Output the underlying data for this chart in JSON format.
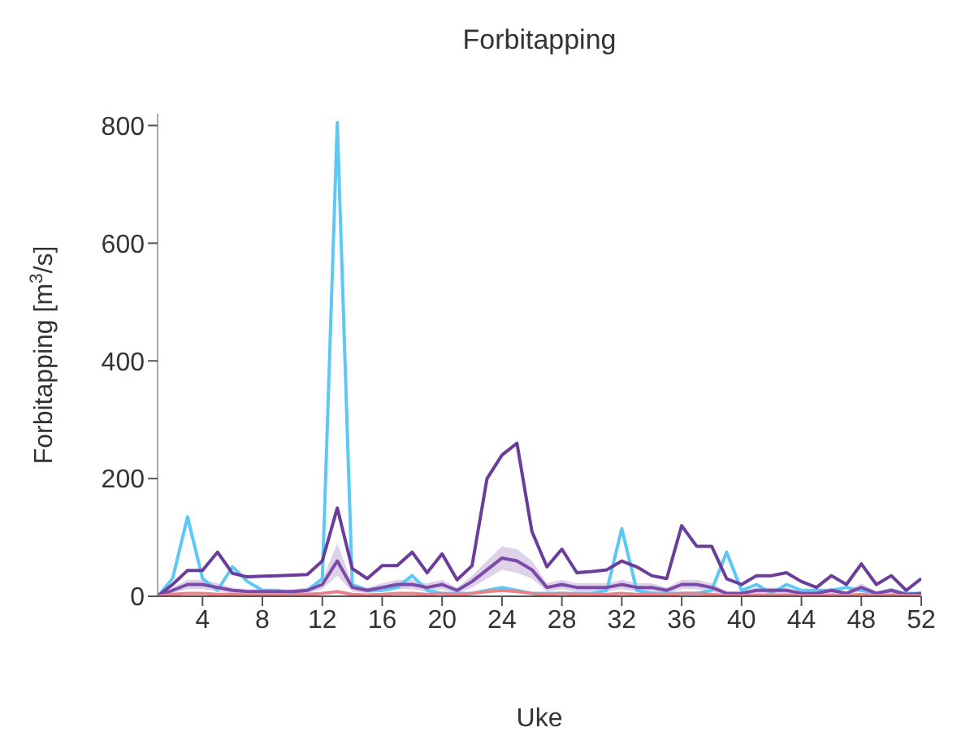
{
  "chart_data": {
    "type": "line",
    "title": "Forbitapping",
    "xlabel": "Uke",
    "ylabel": "Forbitapping [m$^{3}$/s]",
    "x": [
      1,
      2,
      3,
      4,
      5,
      6,
      7,
      8,
      9,
      10,
      11,
      12,
      13,
      14,
      15,
      16,
      17,
      18,
      19,
      20,
      21,
      22,
      23,
      24,
      25,
      26,
      27,
      28,
      29,
      30,
      31,
      32,
      33,
      34,
      35,
      36,
      37,
      38,
      39,
      40,
      41,
      42,
      43,
      44,
      45,
      46,
      47,
      48,
      49,
      50,
      51,
      52
    ],
    "xlim": [
      1,
      52
    ],
    "xticks": [
      4,
      8,
      12,
      16,
      20,
      24,
      28,
      32,
      36,
      40,
      44,
      48,
      52
    ],
    "ylim": [
      0,
      820
    ],
    "yticks": [
      0,
      200,
      400,
      600,
      800
    ],
    "grid": false,
    "legend": false,
    "marker": "none",
    "line_style": "solid",
    "series": [
      {
        "color": "#5bc8f5",
        "values": [
          0,
          30,
          135,
          30,
          10,
          50,
          25,
          10,
          10,
          5,
          10,
          30,
          805,
          20,
          10,
          10,
          15,
          35,
          10,
          5,
          5,
          5,
          10,
          15,
          10,
          5,
          5,
          5,
          5,
          5,
          10,
          115,
          10,
          5,
          5,
          5,
          5,
          10,
          75,
          10,
          20,
          5,
          20,
          10,
          10,
          10,
          15,
          10,
          5,
          10,
          5,
          5
        ]
      },
      {
        "color": "#6a3d9a",
        "values": [
          0,
          20,
          44,
          44,
          75,
          39,
          33,
          34,
          35,
          36,
          37,
          60,
          150,
          47,
          30,
          52,
          52,
          75,
          40,
          72,
          28,
          52,
          200,
          240,
          260,
          110,
          50,
          80,
          40,
          42,
          45,
          60,
          50,
          35,
          30,
          120,
          85,
          85,
          30,
          20,
          35,
          35,
          40,
          25,
          15,
          35,
          20,
          55,
          20,
          35,
          10,
          30
        ]
      },
      {
        "color": "#7b4aa8",
        "values": [
          0,
          10,
          20,
          20,
          15,
          10,
          8,
          8,
          8,
          8,
          10,
          20,
          60,
          15,
          10,
          15,
          20,
          20,
          15,
          20,
          10,
          25,
          45,
          65,
          60,
          45,
          15,
          20,
          15,
          15,
          15,
          20,
          15,
          15,
          10,
          20,
          20,
          15,
          5,
          5,
          10,
          10,
          10,
          5,
          5,
          10,
          5,
          15,
          5,
          10,
          3,
          5
        ],
        "lower": [
          0,
          5,
          12,
          12,
          8,
          5,
          4,
          4,
          4,
          4,
          5,
          12,
          35,
          8,
          5,
          8,
          12,
          12,
          8,
          12,
          5,
          15,
          30,
          45,
          40,
          30,
          8,
          12,
          8,
          8,
          8,
          12,
          8,
          8,
          5,
          12,
          12,
          8,
          2,
          2,
          5,
          5,
          5,
          2,
          2,
          5,
          2,
          8,
          2,
          5,
          1,
          2
        ],
        "upper": [
          0,
          15,
          28,
          28,
          22,
          15,
          12,
          12,
          12,
          12,
          15,
          28,
          90,
          22,
          15,
          22,
          28,
          28,
          22,
          28,
          15,
          35,
          60,
          85,
          80,
          60,
          22,
          28,
          22,
          22,
          22,
          28,
          22,
          22,
          15,
          28,
          28,
          22,
          8,
          8,
          15,
          15,
          15,
          8,
          8,
          15,
          8,
          22,
          8,
          15,
          5,
          8
        ]
      },
      {
        "color": "#e8818a",
        "values": [
          0,
          3,
          5,
          5,
          3,
          3,
          2,
          2,
          2,
          2,
          3,
          5,
          8,
          3,
          2,
          3,
          5,
          5,
          3,
          5,
          2,
          5,
          8,
          10,
          8,
          5,
          3,
          5,
          3,
          3,
          3,
          5,
          3,
          3,
          2,
          5,
          5,
          3,
          1,
          1,
          2,
          2,
          2,
          1,
          1,
          2,
          1,
          3,
          1,
          2,
          1,
          1
        ]
      }
    ]
  }
}
